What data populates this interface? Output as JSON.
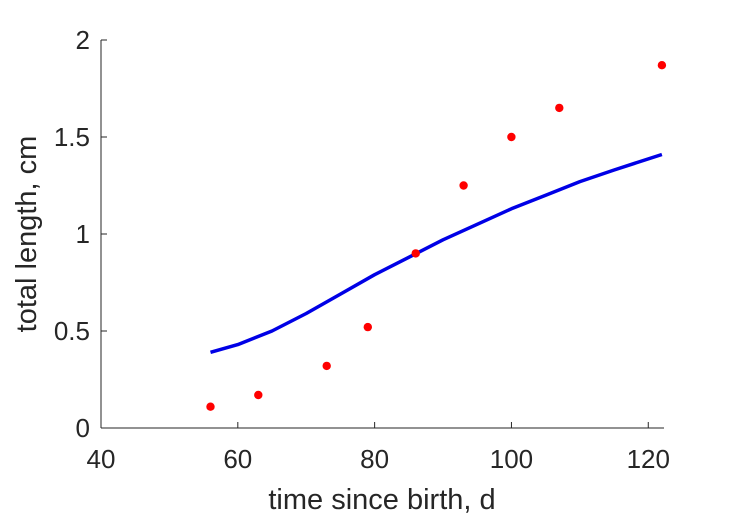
{
  "chart_data": {
    "type": "scatter",
    "xlabel": "time since birth, d",
    "ylabel": "total length, cm",
    "xlim": [
      40,
      122.3
    ],
    "ylim": [
      0,
      2
    ],
    "xticks": [
      "40",
      "60",
      "80",
      "100",
      "120"
    ],
    "yticks": [
      "0",
      "0.5",
      "1",
      "1.5",
      "2"
    ],
    "grid": false,
    "series": [
      {
        "kind": "points",
        "color": "#ff0000",
        "x": [
          56,
          63,
          73,
          79,
          86,
          93,
          100,
          107,
          122
        ],
        "y": [
          0.11,
          0.17,
          0.32,
          0.52,
          0.9,
          1.25,
          1.5,
          1.65,
          1.87
        ]
      },
      {
        "kind": "line",
        "color": "#0000e6",
        "x": [
          56,
          60,
          65,
          70,
          75,
          80,
          85,
          90,
          95,
          100,
          105,
          110,
          115,
          122
        ],
        "y": [
          0.39,
          0.43,
          0.5,
          0.59,
          0.69,
          0.79,
          0.88,
          0.97,
          1.05,
          1.13,
          1.2,
          1.27,
          1.33,
          1.41
        ]
      }
    ]
  }
}
